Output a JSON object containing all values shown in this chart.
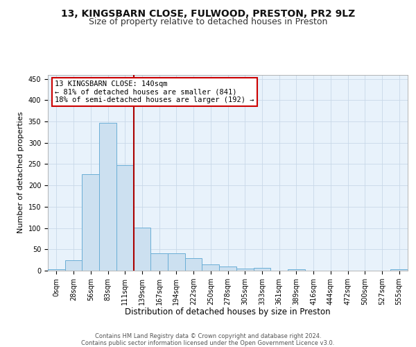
{
  "title1": "13, KINGSBARN CLOSE, FULWOOD, PRESTON, PR2 9LZ",
  "title2": "Size of property relative to detached houses in Preston",
  "xlabel": "Distribution of detached houses by size in Preston",
  "ylabel": "Number of detached properties",
  "bin_labels": [
    "0sqm",
    "28sqm",
    "56sqm",
    "83sqm",
    "111sqm",
    "139sqm",
    "167sqm",
    "194sqm",
    "222sqm",
    "250sqm",
    "278sqm",
    "305sqm",
    "333sqm",
    "361sqm",
    "389sqm",
    "416sqm",
    "444sqm",
    "472sqm",
    "500sqm",
    "527sqm",
    "555sqm"
  ],
  "bar_values": [
    3,
    25,
    227,
    347,
    247,
    101,
    41,
    41,
    30,
    14,
    10,
    5,
    6,
    0,
    4,
    0,
    0,
    0,
    0,
    0,
    3
  ],
  "bar_color": "#cce0f0",
  "bar_edge_color": "#6aaed6",
  "grid_color": "#c8d8e8",
  "background_color": "#e8f2fb",
  "vline_color": "#aa0000",
  "vline_pos": 4.5,
  "annotation_text": "13 KINGSBARN CLOSE: 140sqm\n← 81% of detached houses are smaller (841)\n18% of semi-detached houses are larger (192) →",
  "annotation_edge_color": "#cc0000",
  "footnote": "Contains HM Land Registry data © Crown copyright and database right 2024.\nContains public sector information licensed under the Open Government Licence v3.0.",
  "ylim_max": 460,
  "yticks": [
    0,
    50,
    100,
    150,
    200,
    250,
    300,
    350,
    400,
    450
  ],
  "title1_fontsize": 10,
  "title2_fontsize": 9,
  "xlabel_fontsize": 8.5,
  "ylabel_fontsize": 8,
  "tick_fontsize": 7,
  "annotation_fontsize": 7.5,
  "footnote_fontsize": 6
}
